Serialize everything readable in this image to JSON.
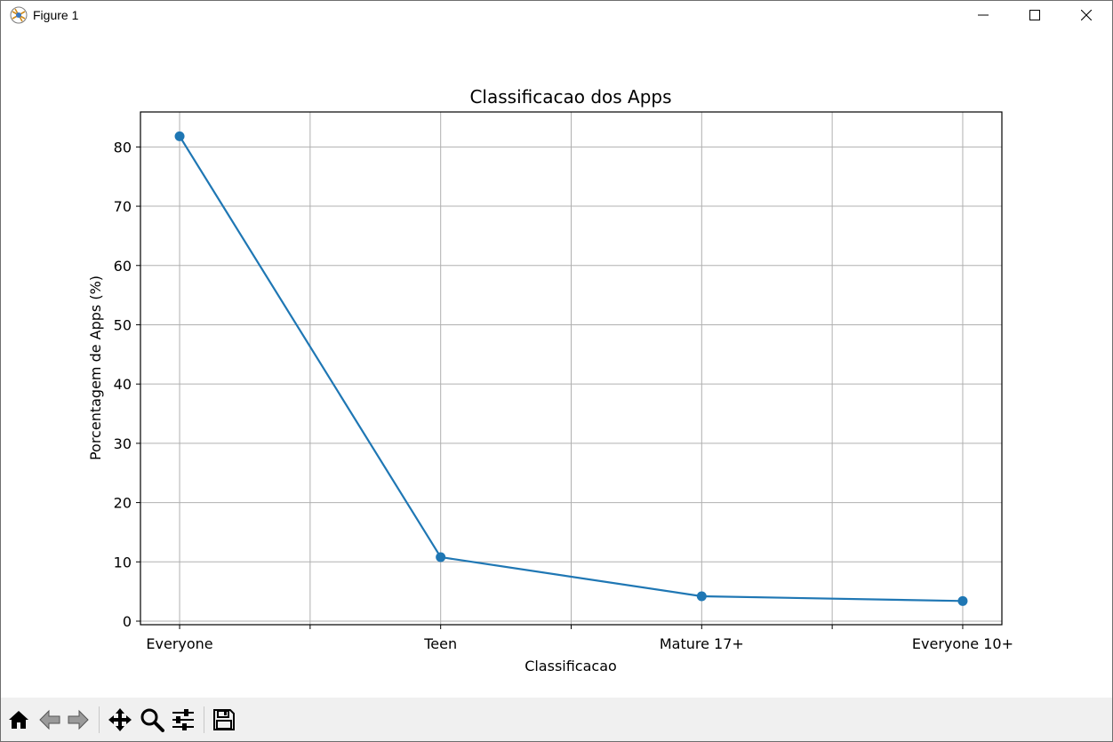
{
  "window": {
    "title": "Figure 1",
    "controls": [
      "minimize-icon",
      "maximize-icon",
      "close-icon"
    ]
  },
  "toolbar": {
    "buttons": [
      "home-icon",
      "back-icon",
      "forward-icon",
      "pan-icon",
      "zoom-icon",
      "configure-subplots-icon",
      "save-icon"
    ]
  },
  "chart_data": {
    "type": "line",
    "title": "Classificacao dos Apps",
    "xlabel": "Classificacao",
    "ylabel": "Porcentagem de Apps (%)",
    "categories": [
      "Everyone",
      "Teen",
      "Mature 17+",
      "Everyone 10+"
    ],
    "values": [
      81.8,
      10.8,
      4.2,
      3.4
    ],
    "ylim": [
      -0.6,
      85.9
    ],
    "yticks": [
      0,
      10,
      20,
      30,
      40,
      50,
      60,
      70,
      80
    ],
    "xticks": [
      0,
      0.5,
      1,
      1.5,
      2,
      2.5,
      3
    ],
    "xlim": [
      -0.15,
      3.15
    ],
    "grid": true,
    "marker": "circle",
    "color": "#1f77b4"
  }
}
